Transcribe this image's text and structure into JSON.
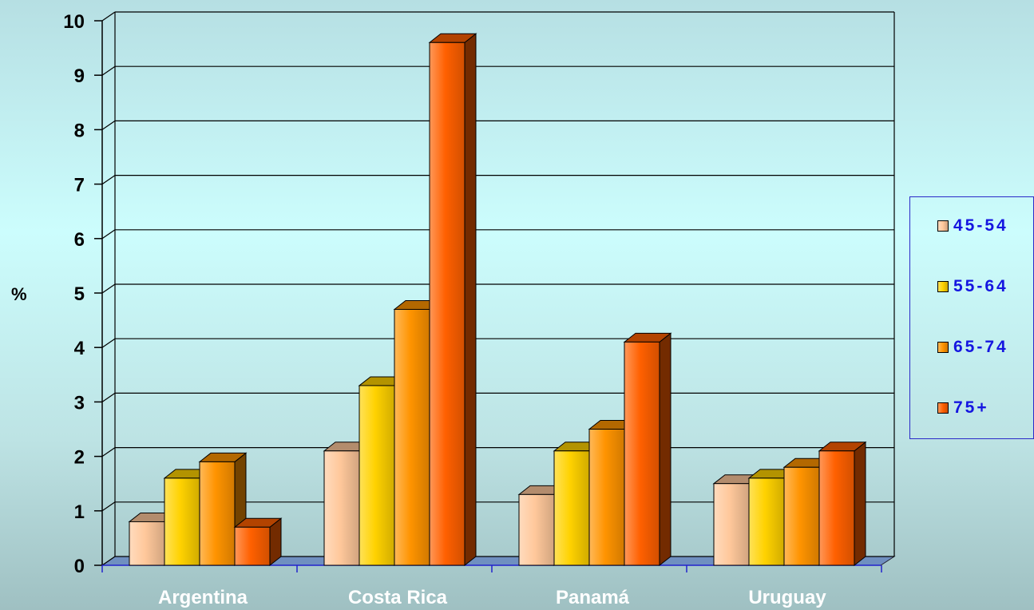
{
  "chart_data": {
    "type": "bar",
    "title": "",
    "xlabel": "",
    "ylabel": "%",
    "ylim": [
      0,
      10
    ],
    "yticks": [
      "0",
      "1",
      "2",
      "3",
      "4",
      "5",
      "6",
      "7",
      "8",
      "9",
      "10"
    ],
    "grid": true,
    "legend_position": "right",
    "categories": [
      "Argentina",
      "Costa Rica",
      "Panamá",
      "Uruguay"
    ],
    "series": [
      {
        "name": "45-54",
        "color": "#ffc89b",
        "values": [
          0.8,
          2.1,
          1.3,
          1.5
        ]
      },
      {
        "name": "55-64",
        "color": "#ffd200",
        "values": [
          1.6,
          3.3,
          2.1,
          1.6
        ]
      },
      {
        "name": "65-74",
        "color": "#ff9400",
        "values": [
          1.9,
          4.7,
          2.5,
          1.8
        ]
      },
      {
        "name": "75+",
        "color": "#ff6000",
        "values": [
          0.7,
          9.6,
          4.1,
          2.1
        ]
      }
    ]
  },
  "legend": {
    "items": [
      "45-54",
      "55-64",
      "65-74",
      "75+"
    ]
  }
}
